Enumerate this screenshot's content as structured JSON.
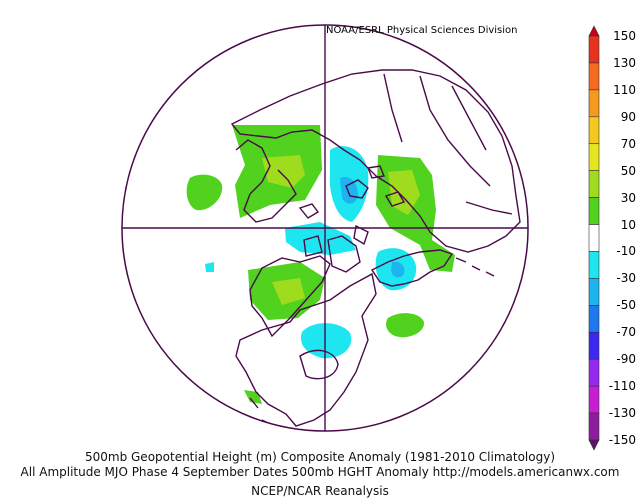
{
  "credit": "NOAA/ESRL Physical Sciences Division",
  "footer": {
    "line1": "500mb Geopotential Height (m) Composite Anomaly (1981-2010 Climatology)",
    "line2": "All Amplitude MJO Phase 4 September Dates 500mb HGHT Anomaly http://models.americanwx.com",
    "line3": "NCEP/NCAR Reanalysis"
  },
  "colorbar": {
    "labels": [
      "150",
      "130",
      "110",
      "90",
      "70",
      "50",
      "30",
      "10",
      "-10",
      "-30",
      "-50",
      "-70",
      "-90",
      "-110",
      "-130",
      "-150"
    ],
    "colors": [
      "#c8001a",
      "#e8321e",
      "#f56a1e",
      "#f59a1e",
      "#f5c81e",
      "#e6e61e",
      "#a0dc1e",
      "#50d21e",
      "#ffffff",
      "#1ee6f0",
      "#1eb4f0",
      "#1e78f0",
      "#3c28f0",
      "#9628f0",
      "#c81ed2",
      "#8c1e9b",
      "#5a1464"
    ]
  },
  "anomaly_colors": {
    "positive": "#50d21e",
    "positive_strong": "#a0dc1e",
    "negative": "#1ee6f0",
    "negative_strong": "#1eb4f0",
    "coastline": "#4a0a4a"
  }
}
